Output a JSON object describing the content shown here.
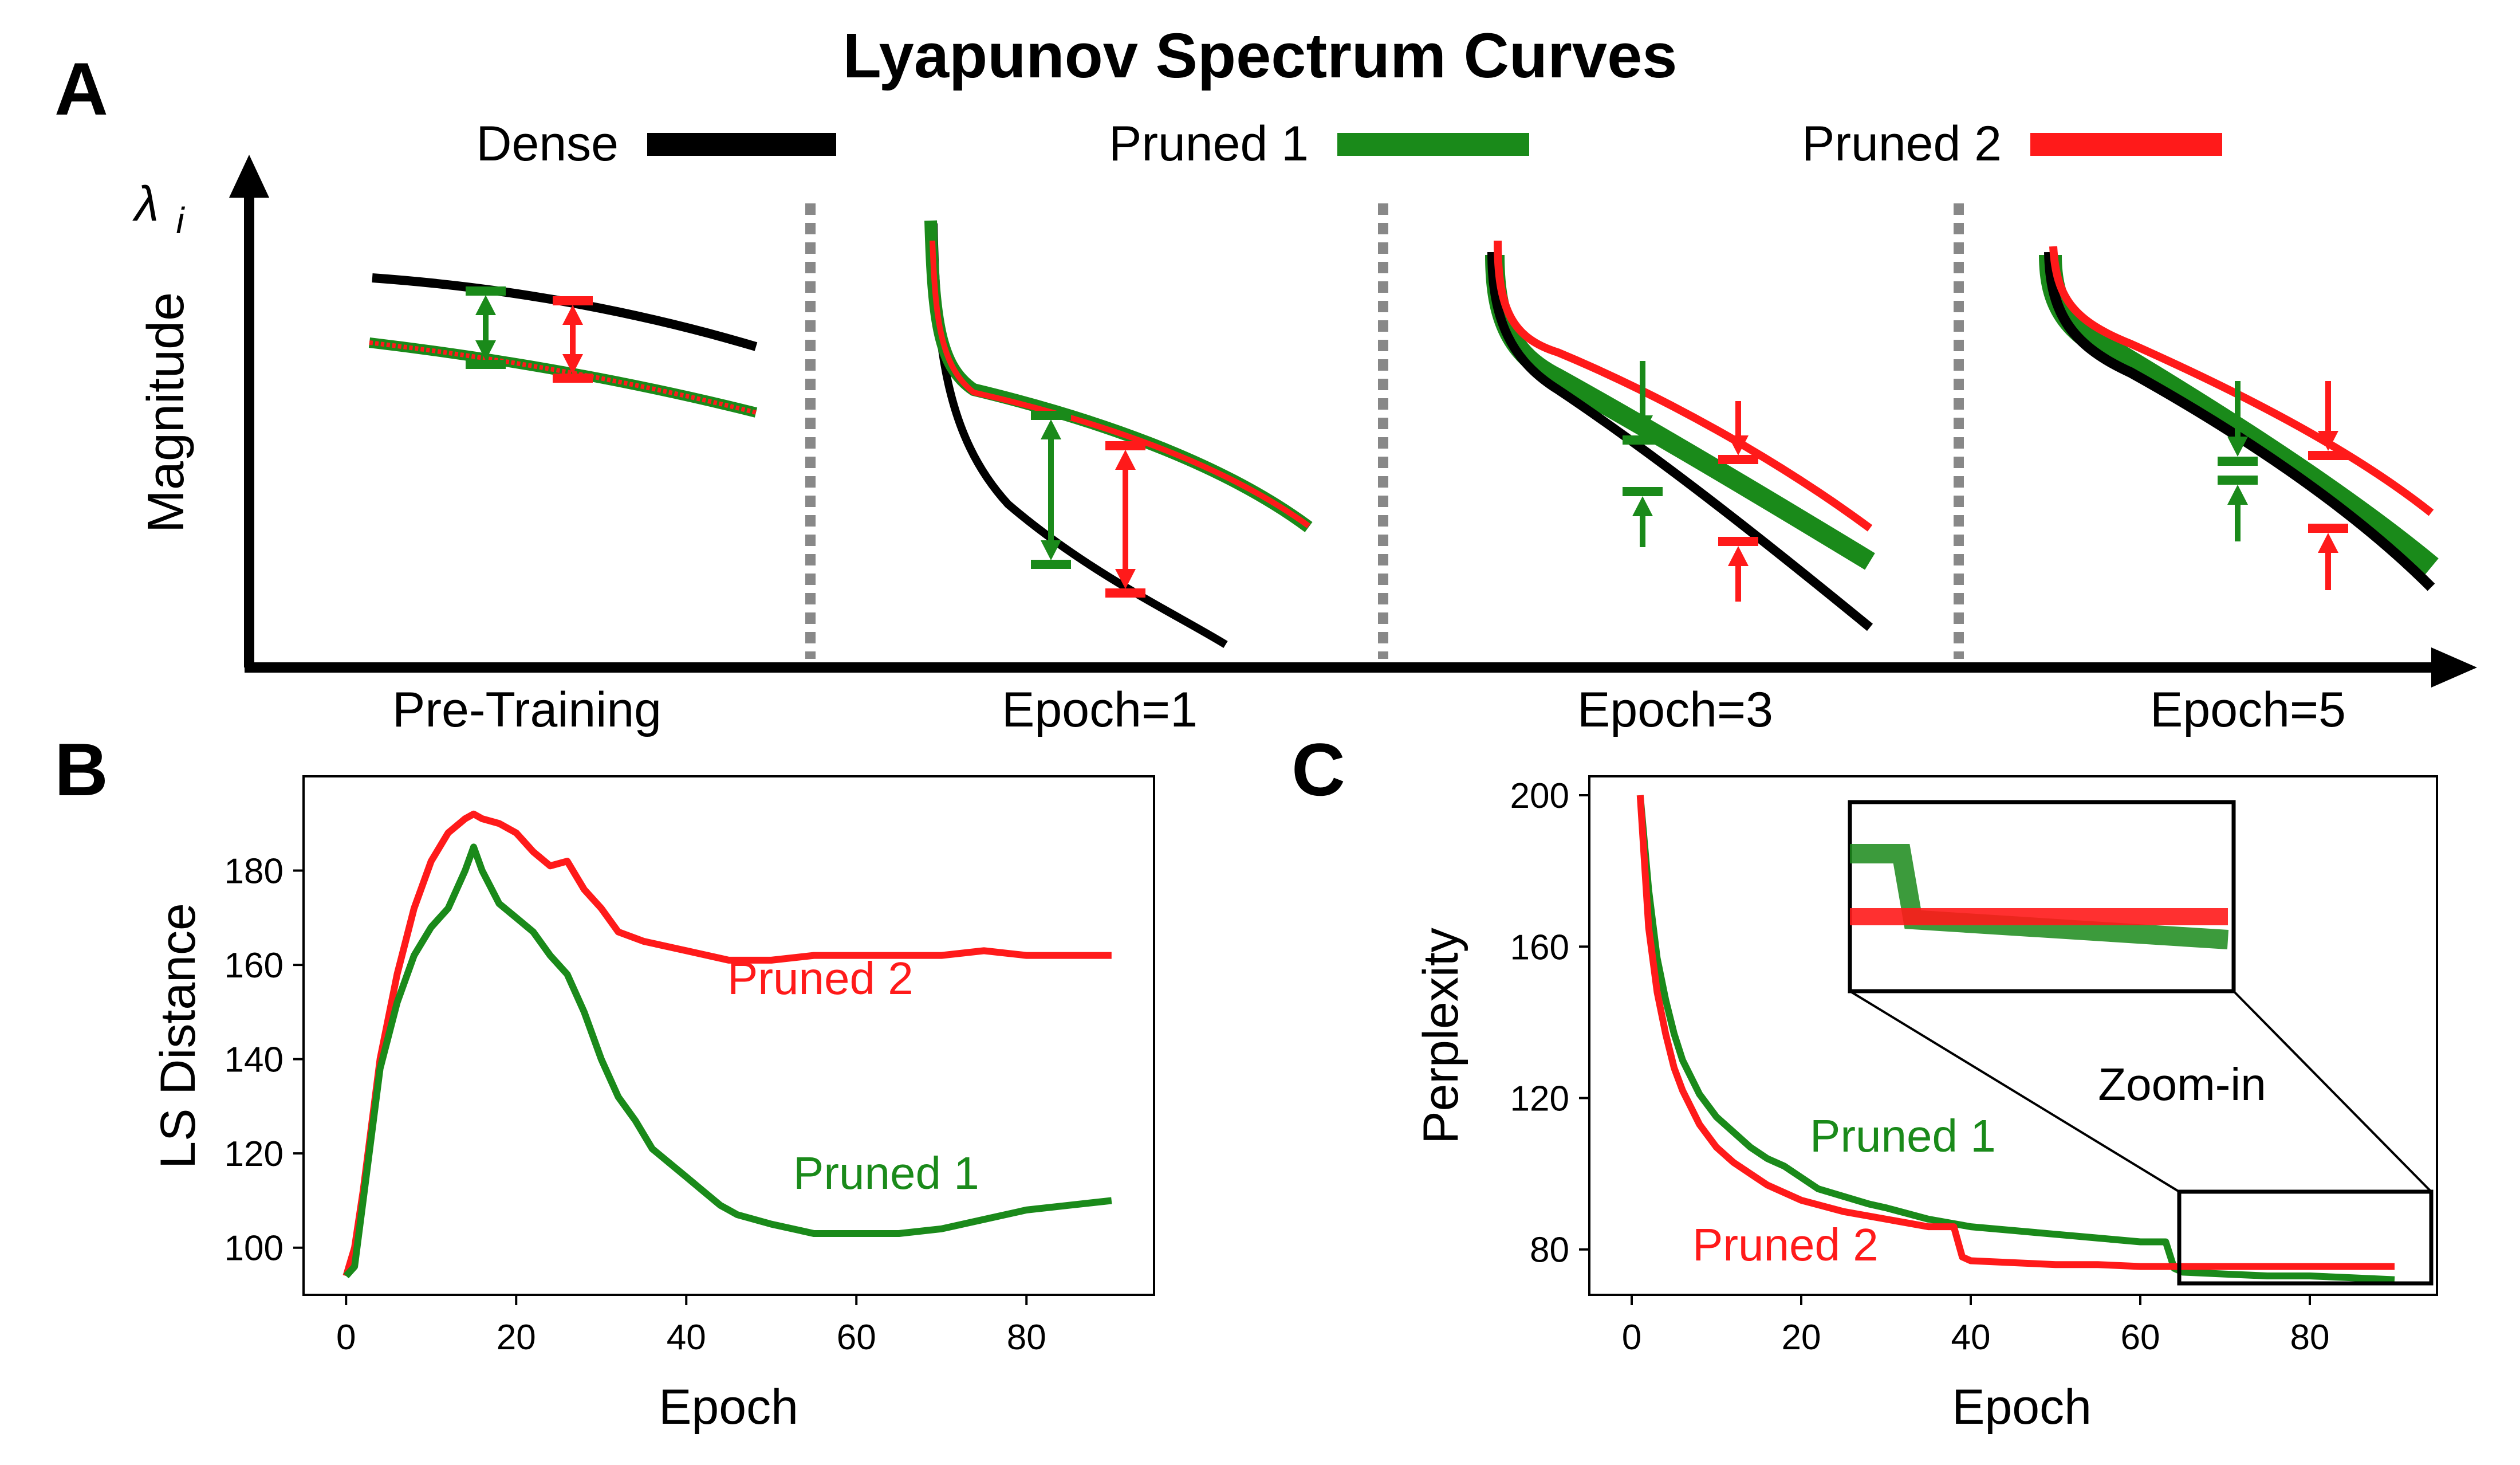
{
  "figure": {
    "panel_labels": [
      "A",
      "B",
      "C"
    ]
  },
  "colors": {
    "dense": "#000000",
    "pruned1": "#1a8a1a",
    "pruned2": "#ff1a1a",
    "divider": "#888888"
  },
  "chart_data": [
    {
      "id": "A",
      "type": "line",
      "title": "Lyapunov Spectrum Curves",
      "ylabel": "Magnitude",
      "ysymbol": "λ",
      "ysymbol_sub": "i",
      "legend": [
        {
          "name": "Dense",
          "color": "#000000"
        },
        {
          "name": "Pruned 1",
          "color": "#1a8a1a"
        },
        {
          "name": "Pruned 2",
          "color": "#ff1a1a"
        }
      ],
      "legend_placement": "top",
      "stages": [
        "Pre-Training",
        "Epoch=1",
        "Epoch=3",
        "Epoch=5"
      ],
      "axis_ticks": false
    },
    {
      "id": "B",
      "type": "line",
      "xlabel": "Epoch",
      "ylabel": "LS Distance",
      "xlim": [
        -5,
        95
      ],
      "ylim": [
        90,
        200
      ],
      "xticks": [
        0,
        20,
        40,
        60,
        80
      ],
      "yticks": [
        100,
        120,
        140,
        160,
        180
      ],
      "series": [
        {
          "name": "Pruned 2",
          "color": "#ff1a1a",
          "x": [
            0,
            1,
            2,
            4,
            6,
            8,
            10,
            12,
            14,
            15,
            16,
            18,
            20,
            22,
            24,
            26,
            28,
            30,
            32,
            35,
            40,
            45,
            50,
            55,
            60,
            65,
            70,
            75,
            80,
            85,
            90
          ],
          "y": [
            94,
            100,
            112,
            140,
            158,
            172,
            182,
            188,
            191,
            192,
            191,
            190,
            188,
            184,
            181,
            182,
            176,
            172,
            167,
            165,
            163,
            161,
            161,
            162,
            162,
            162,
            162,
            163,
            162,
            162,
            162
          ]
        },
        {
          "name": "Pruned 1",
          "color": "#1a8a1a",
          "x": [
            0,
            1,
            2,
            4,
            6,
            8,
            10,
            12,
            14,
            15,
            16,
            18,
            20,
            22,
            24,
            26,
            28,
            30,
            32,
            34,
            36,
            38,
            40,
            42,
            44,
            46,
            48,
            50,
            55,
            60,
            65,
            70,
            75,
            80,
            85,
            90
          ],
          "y": [
            94,
            96,
            110,
            138,
            152,
            162,
            168,
            172,
            180,
            185,
            180,
            173,
            170,
            167,
            162,
            158,
            150,
            140,
            132,
            127,
            121,
            118,
            115,
            112,
            109,
            107,
            106,
            105,
            103,
            103,
            103,
            104,
            106,
            108,
            109,
            110
          ]
        }
      ],
      "annotations": [
        {
          "text": "Pruned 2",
          "color": "#ff1a1a"
        },
        {
          "text": "Pruned 1",
          "color": "#1a8a1a"
        }
      ]
    },
    {
      "id": "C",
      "type": "line",
      "xlabel": "Epoch",
      "ylabel": "Perplexity",
      "xlim": [
        -5,
        95
      ],
      "ylim": [
        68,
        205
      ],
      "xticks": [
        0,
        20,
        40,
        60,
        80
      ],
      "yticks": [
        80,
        120,
        160,
        200
      ],
      "series": [
        {
          "name": "Pruned 1",
          "color": "#1a8a1a",
          "x": [
            1,
            2,
            3,
            4,
            5,
            6,
            8,
            10,
            12,
            14,
            16,
            18,
            20,
            22,
            25,
            28,
            30,
            35,
            40,
            45,
            50,
            55,
            60,
            63,
            64,
            65,
            70,
            75,
            80,
            85,
            90
          ],
          "y": [
            200,
            175,
            157,
            146,
            137,
            130,
            121,
            115,
            111,
            107,
            104,
            102,
            99,
            96,
            94,
            92,
            91,
            88,
            86,
            85,
            84,
            83,
            82,
            82,
            75,
            74,
            73.5,
            73,
            73,
            72.5,
            72
          ]
        },
        {
          "name": "Pruned 2",
          "color": "#ff1a1a",
          "x": [
            1,
            2,
            3,
            4,
            5,
            6,
            8,
            10,
            12,
            14,
            16,
            18,
            20,
            25,
            30,
            35,
            38,
            39,
            40,
            45,
            50,
            55,
            60,
            65,
            70,
            75,
            80,
            85,
            90
          ],
          "y": [
            200,
            165,
            148,
            137,
            128,
            122,
            113,
            107,
            103,
            100,
            97,
            95,
            93,
            90,
            88,
            86,
            86,
            78,
            77,
            76.5,
            76,
            76,
            75.5,
            75.5,
            75.5,
            75.5,
            75.5,
            75.5,
            75.5
          ]
        }
      ],
      "annotations": [
        {
          "text": "Pruned 1",
          "color": "#1a8a1a"
        },
        {
          "text": "Pruned 2",
          "color": "#ff1a1a"
        },
        {
          "text": "Zoom-in",
          "color": "#000000"
        }
      ],
      "inset": {
        "label": "Zoom-in",
        "x_range": [
          63,
          90
        ]
      }
    }
  ]
}
